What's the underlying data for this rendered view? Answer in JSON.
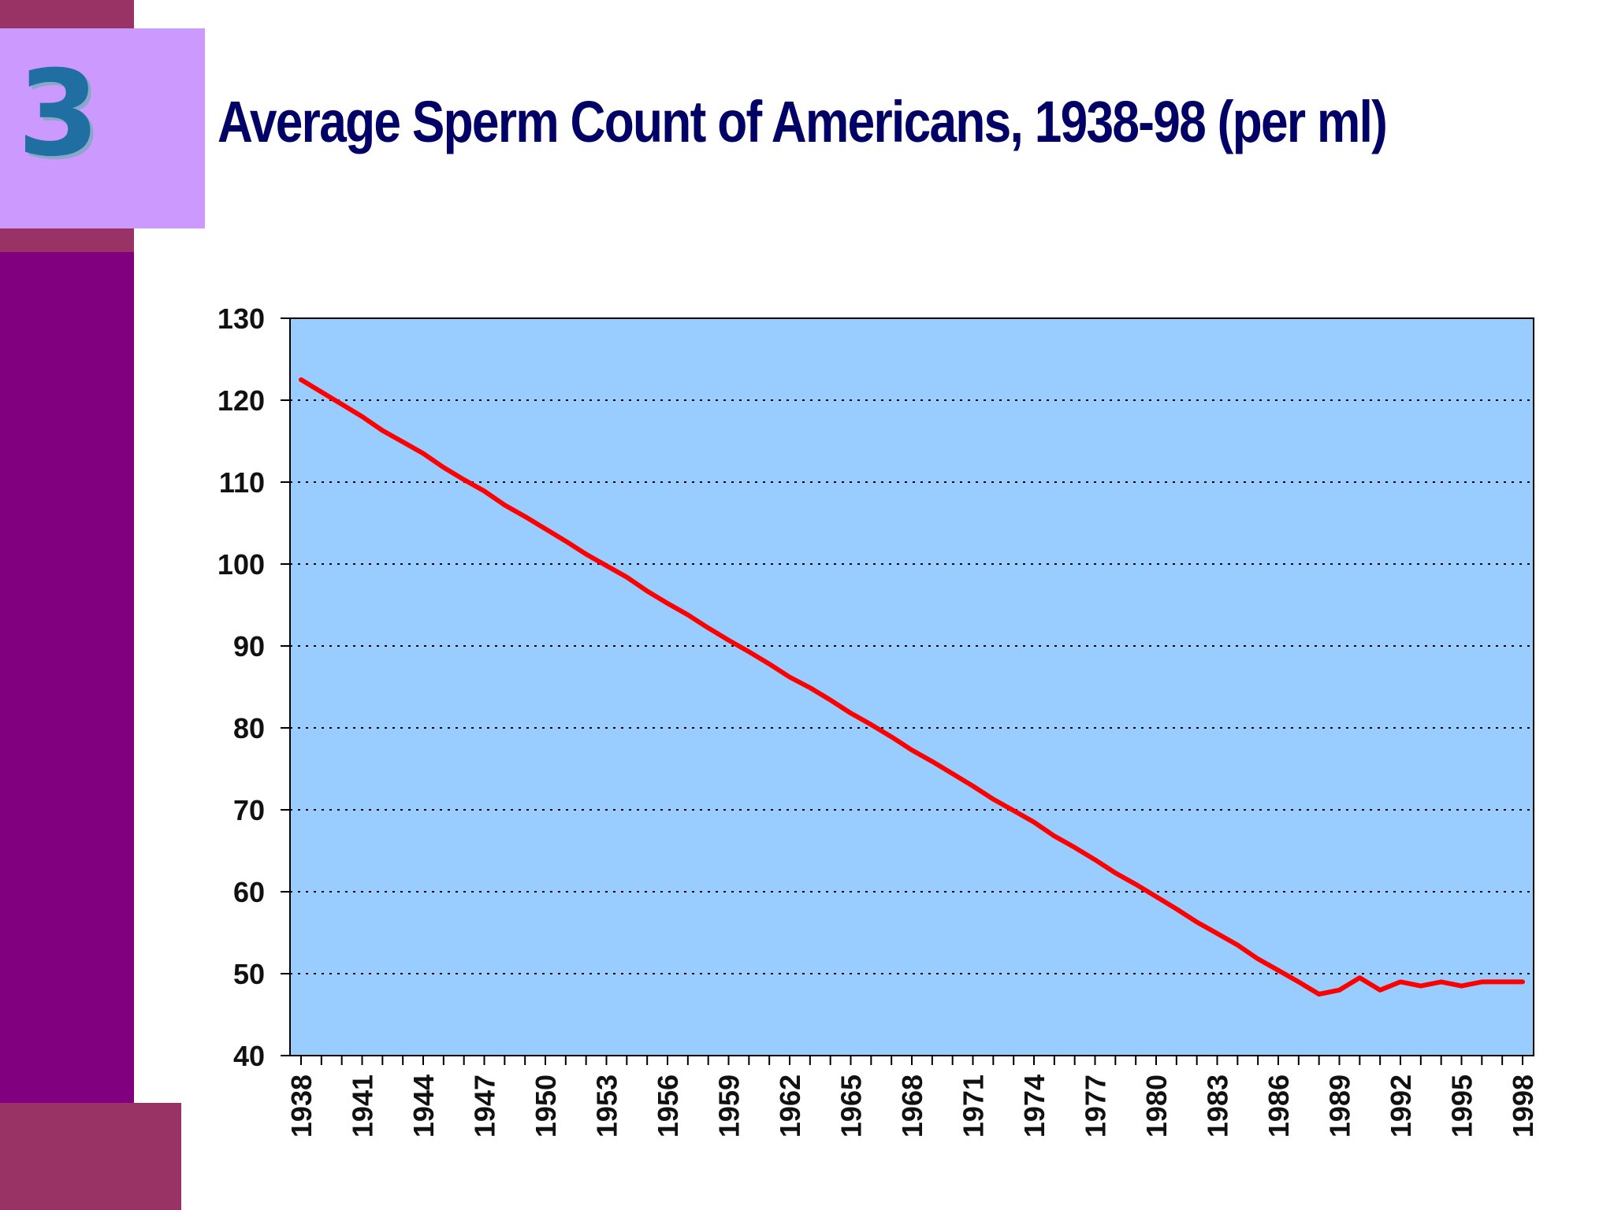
{
  "slide": {
    "number": "3",
    "title": "Average Sperm Count of Americans, 1938-98 (per ml)"
  },
  "colors": {
    "plot_background": "#99ccff",
    "line": "#ff0000",
    "title": "#000066",
    "accent_purple": "#800080",
    "accent_maroon": "#993366",
    "accent_lilac": "#cc99ff",
    "number": "#1f6fa3"
  },
  "chart_data": {
    "type": "line",
    "title": "",
    "xlabel": "",
    "ylabel": "",
    "ylim": [
      40,
      130
    ],
    "yticks": [
      40,
      50,
      60,
      70,
      80,
      90,
      100,
      110,
      120,
      130
    ],
    "xticks": [
      "1938",
      "1941",
      "1944",
      "1947",
      "1950",
      "1953",
      "1956",
      "1959",
      "1962",
      "1965",
      "1968",
      "1971",
      "1974",
      "1977",
      "1980",
      "1983",
      "1986",
      "1989",
      "1992",
      "1995",
      "1998"
    ],
    "x_range": [
      1938,
      1998
    ],
    "grid": "horizontal dotted",
    "legend": "none",
    "series": [
      {
        "values": [
          [
            1938,
            122.5
          ],
          [
            1939,
            121.0
          ],
          [
            1940,
            119.5
          ],
          [
            1941,
            118.0
          ],
          [
            1942,
            116.3
          ],
          [
            1943,
            114.9
          ],
          [
            1944,
            113.5
          ],
          [
            1945,
            111.8
          ],
          [
            1946,
            110.3
          ],
          [
            1947,
            108.9
          ],
          [
            1948,
            107.2
          ],
          [
            1949,
            105.8
          ],
          [
            1950,
            104.3
          ],
          [
            1951,
            102.8
          ],
          [
            1952,
            101.2
          ],
          [
            1953,
            99.8
          ],
          [
            1954,
            98.4
          ],
          [
            1955,
            96.7
          ],
          [
            1956,
            95.2
          ],
          [
            1957,
            93.8
          ],
          [
            1958,
            92.2
          ],
          [
            1959,
            90.7
          ],
          [
            1960,
            89.3
          ],
          [
            1961,
            87.8
          ],
          [
            1962,
            86.2
          ],
          [
            1963,
            84.9
          ],
          [
            1964,
            83.4
          ],
          [
            1965,
            81.8
          ],
          [
            1966,
            80.4
          ],
          [
            1967,
            78.9
          ],
          [
            1968,
            77.3
          ],
          [
            1969,
            75.9
          ],
          [
            1970,
            74.4
          ],
          [
            1971,
            72.9
          ],
          [
            1972,
            71.3
          ],
          [
            1973,
            69.9
          ],
          [
            1974,
            68.5
          ],
          [
            1975,
            66.8
          ],
          [
            1976,
            65.4
          ],
          [
            1977,
            63.9
          ],
          [
            1978,
            62.3
          ],
          [
            1979,
            60.9
          ],
          [
            1980,
            59.4
          ],
          [
            1981,
            57.9
          ],
          [
            1982,
            56.3
          ],
          [
            1983,
            54.9
          ],
          [
            1984,
            53.5
          ],
          [
            1985,
            51.8
          ],
          [
            1986,
            50.4
          ],
          [
            1987,
            49.0
          ],
          [
            1988,
            47.5
          ],
          [
            1989,
            48.0
          ],
          [
            1990,
            49.5
          ],
          [
            1991,
            48.0
          ],
          [
            1992,
            49.0
          ],
          [
            1993,
            48.5
          ],
          [
            1994,
            49.0
          ],
          [
            1995,
            48.5
          ],
          [
            1996,
            49.0
          ],
          [
            1997,
            49.0
          ],
          [
            1998,
            49.0
          ]
        ]
      }
    ]
  }
}
